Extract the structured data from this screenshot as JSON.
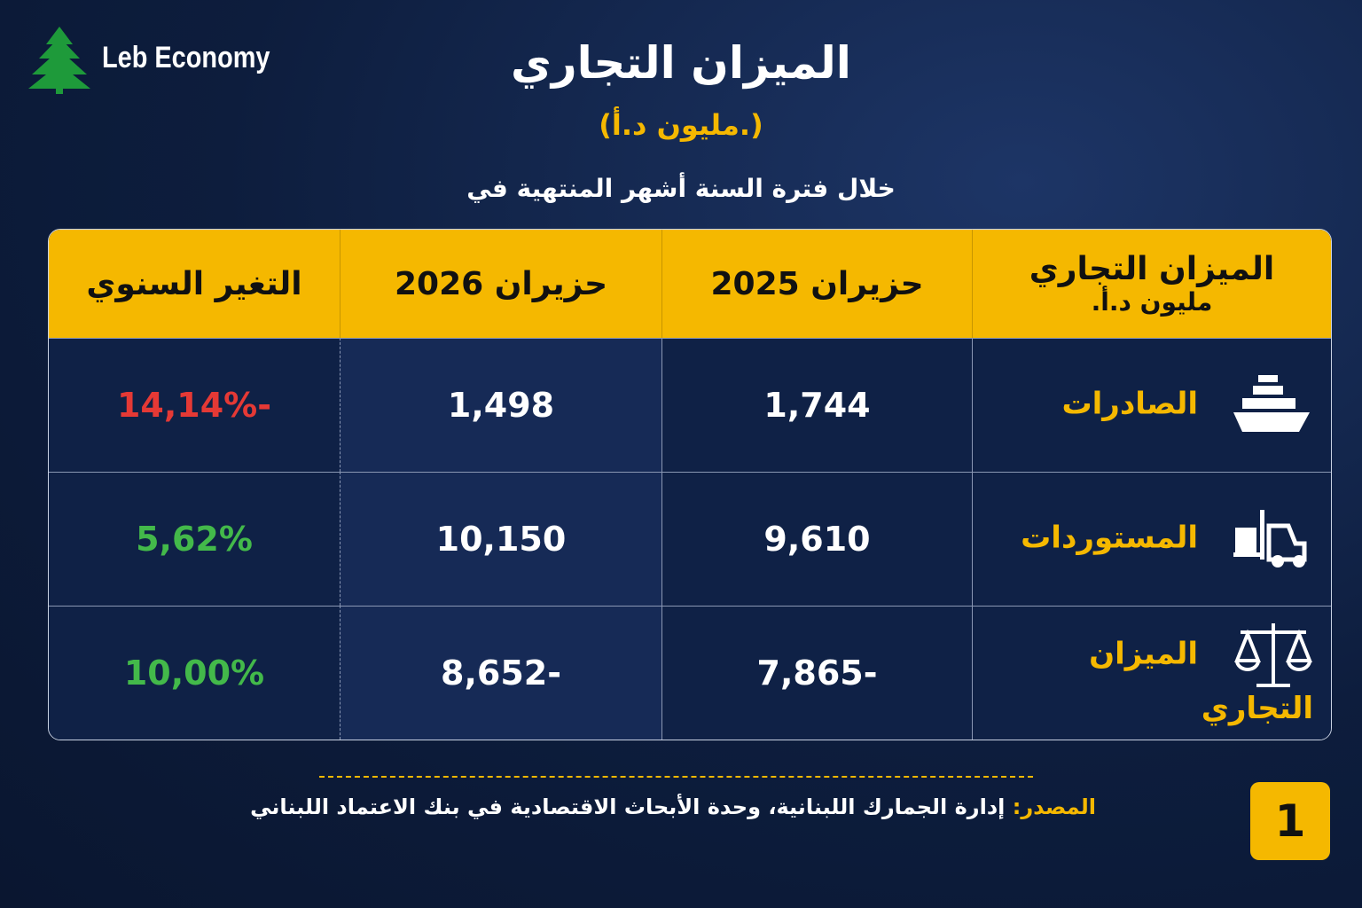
{
  "brand": "Leb Economy",
  "header": {
    "title": "الميزان التجاري",
    "subtitle": "(مليون د.أ.)",
    "period": "خلال فترة السنة أشهر المنتهية في"
  },
  "table": {
    "header": [
      "الميزان التجاري",
      "حزيران 2025",
      "حزيران 2026",
      "التغير السنوي"
    ],
    "header_note": "مليون د.أ.",
    "rows": [
      [
        "الصادرات",
        "1,744",
        "1,498",
        "-14,14%"
      ],
      [
        "المستوردات",
        "9,610",
        "10,150",
        "5,62%"
      ],
      [
        "الميزان التجاري",
        "-7,865",
        "-8,652",
        "10,00%"
      ]
    ]
  },
  "footer": {
    "source_label": "المصدر:",
    "source": "إدارة الجمارك اللبنانية، وحدة الأبحاث الاقتصادية في بنك الاعتماد اللبناني",
    "page": "1"
  }
}
